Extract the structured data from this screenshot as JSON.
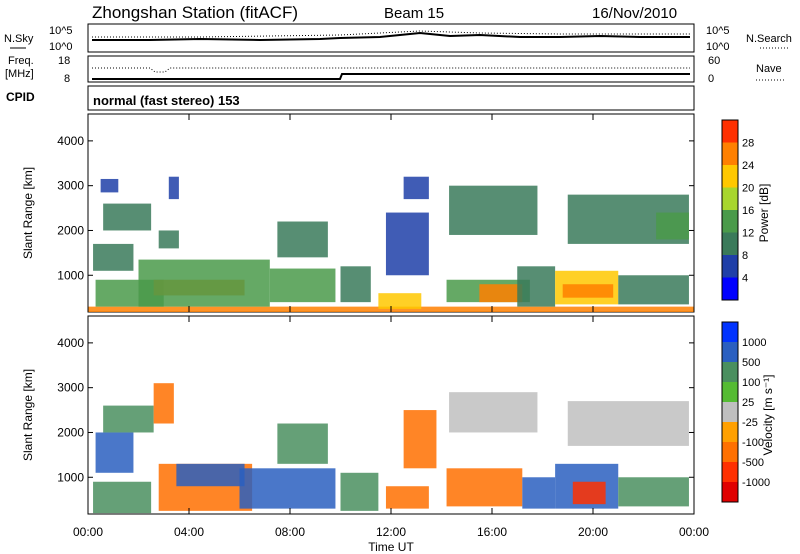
{
  "header": {
    "station": "Zhongshan Station (fitACF)",
    "beam": "Beam 15",
    "date": "16/Nov/2010"
  },
  "noise_panel": {
    "left_label": "N.Sky",
    "right_label": "N.Search",
    "left_ticks": [
      "10^5",
      "10^0"
    ],
    "right_ticks": [
      "10^5",
      "10^0"
    ]
  },
  "freq_panel": {
    "label_line1": "Freq.",
    "label_line2": "[MHz]",
    "left_ticks": [
      "18",
      "8"
    ],
    "right_ticks": [
      "60",
      "0"
    ],
    "right_label": "Nave"
  },
  "cpid_panel": {
    "label": "CPID",
    "text": "normal (fast stereo) 153"
  },
  "colors": {
    "power_scale": [
      "#0000ff",
      "#1f3fa8",
      "#3a7a5a",
      "#4a9a4a",
      "#a8d62e",
      "#ffc800",
      "#ff8000",
      "#ff3000",
      "#e00000"
    ],
    "velocity_scale": [
      "#0033ff",
      "#2a5fc0",
      "#4a8f5f",
      "#55bb33",
      "#bfbfbf",
      "#ffa000",
      "#ff7000",
      "#ff3000",
      "#e00000"
    ],
    "ground_scatter": "#bfbfbf"
  },
  "chart_data": [
    {
      "type": "heatmap",
      "name": "power",
      "x_axis": {
        "label": "Time UT",
        "range": [
          0,
          24
        ],
        "ticks": [
          "00:00",
          "04:00",
          "08:00",
          "12:00",
          "16:00",
          "20:00",
          "00:00"
        ]
      },
      "y_axis": {
        "label": "Slant Range [km]",
        "range": [
          180,
          4600
        ],
        "ticks": [
          1000,
          2000,
          3000,
          4000
        ]
      },
      "colorbar": {
        "label": "Power [dB]",
        "ticks": [
          4,
          8,
          12,
          16,
          20,
          24,
          28
        ],
        "range": [
          0,
          32
        ]
      },
      "regions": [
        {
          "t": [
            0.0,
            24.0
          ],
          "r": [
            180,
            300
          ],
          "v": 27
        },
        {
          "t": [
            0.3,
            3.0
          ],
          "r": [
            300,
            900
          ],
          "v": 12
        },
        {
          "t": [
            0.2,
            1.8
          ],
          "r": [
            1100,
            1700
          ],
          "v": 8
        },
        {
          "t": [
            0.6,
            2.5
          ],
          "r": [
            2000,
            2600
          ],
          "v": 10
        },
        {
          "t": [
            0.5,
            1.2
          ],
          "r": [
            2850,
            3150
          ],
          "v": 6
        },
        {
          "t": [
            2.6,
            6.2
          ],
          "r": [
            550,
            900
          ],
          "v": 26
        },
        {
          "t": [
            2.0,
            7.2
          ],
          "r": [
            300,
            1350
          ],
          "v": 14
        },
        {
          "t": [
            2.8,
            3.6
          ],
          "r": [
            1600,
            2000
          ],
          "v": 11
        },
        {
          "t": [
            3.2,
            3.6
          ],
          "r": [
            2700,
            3200
          ],
          "v": 7
        },
        {
          "t": [
            7.2,
            9.8
          ],
          "r": [
            400,
            1150
          ],
          "v": 12
        },
        {
          "t": [
            7.5,
            9.5
          ],
          "r": [
            1400,
            2200
          ],
          "v": 8
        },
        {
          "t": [
            10.0,
            11.2
          ],
          "r": [
            400,
            1200
          ],
          "v": 9
        },
        {
          "t": [
            11.5,
            13.2
          ],
          "r": [
            250,
            600
          ],
          "v": 22
        },
        {
          "t": [
            11.8,
            13.5
          ],
          "r": [
            1000,
            2400
          ],
          "v": 7
        },
        {
          "t": [
            12.5,
            13.5
          ],
          "r": [
            2700,
            3200
          ],
          "v": 6
        },
        {
          "t": [
            14.3,
            17.8
          ],
          "r": [
            1900,
            3000
          ],
          "v": 8
        },
        {
          "t": [
            14.2,
            17.5
          ],
          "r": [
            400,
            900
          ],
          "v": 14
        },
        {
          "t": [
            15.5,
            17.2
          ],
          "r": [
            400,
            800
          ],
          "v": 24
        },
        {
          "t": [
            17.0,
            18.5
          ],
          "r": [
            300,
            1200
          ],
          "v": 10
        },
        {
          "t": [
            18.5,
            21.0
          ],
          "r": [
            350,
            1100
          ],
          "v": 20
        },
        {
          "t": [
            18.8,
            20.8
          ],
          "r": [
            500,
            800
          ],
          "v": 27
        },
        {
          "t": [
            19.0,
            23.8
          ],
          "r": [
            1700,
            2800
          ],
          "v": 8
        },
        {
          "t": [
            21.0,
            23.8
          ],
          "r": [
            350,
            1000
          ],
          "v": 10
        },
        {
          "t": [
            22.5,
            23.8
          ],
          "r": [
            1800,
            2400
          ],
          "v": 12
        }
      ]
    },
    {
      "type": "heatmap",
      "name": "velocity",
      "x_axis": {
        "label": "Time UT",
        "range": [
          0,
          24
        ],
        "ticks": [
          "00:00",
          "04:00",
          "08:00",
          "12:00",
          "16:00",
          "20:00",
          "00:00"
        ]
      },
      "y_axis": {
        "label": "Slant Range [km]",
        "range": [
          180,
          4600
        ],
        "ticks": [
          1000,
          2000,
          3000,
          4000
        ]
      },
      "colorbar": {
        "label": "Velocity [m s⁻¹]",
        "ticks": [
          1000,
          500,
          100,
          25,
          -25,
          -100,
          -500,
          -1000
        ]
      },
      "regions": [
        {
          "t": [
            0.2,
            2.5
          ],
          "r": [
            200,
            900
          ],
          "v": 100
        },
        {
          "t": [
            0.3,
            1.8
          ],
          "r": [
            1100,
            2000
          ],
          "v": 500
        },
        {
          "t": [
            0.6,
            2.6
          ],
          "r": [
            2000,
            2600
          ],
          "v": 100
        },
        {
          "t": [
            2.6,
            3.4
          ],
          "r": [
            2200,
            3100
          ],
          "v": -300
        },
        {
          "t": [
            2.8,
            6.5
          ],
          "r": [
            250,
            1300
          ],
          "v": -200
        },
        {
          "t": [
            3.5,
            6.2
          ],
          "r": [
            800,
            1300
          ],
          "v": 300
        },
        {
          "t": [
            6.0,
            9.8
          ],
          "r": [
            300,
            1200
          ],
          "v": 300
        },
        {
          "t": [
            7.5,
            9.5
          ],
          "r": [
            1300,
            2200
          ],
          "v": 100
        },
        {
          "t": [
            10.0,
            11.5
          ],
          "r": [
            250,
            1100
          ],
          "v": 200
        },
        {
          "t": [
            11.8,
            13.5
          ],
          "r": [
            300,
            800
          ],
          "v": -200
        },
        {
          "t": [
            12.5,
            13.8
          ],
          "r": [
            1200,
            2500
          ],
          "v": -150
        },
        {
          "t": [
            14.3,
            17.8
          ],
          "r": [
            2000,
            2900
          ],
          "v": 0
        },
        {
          "t": [
            14.2,
            17.2
          ],
          "r": [
            350,
            1200
          ],
          "v": -250
        },
        {
          "t": [
            17.2,
            18.5
          ],
          "r": [
            300,
            1000
          ],
          "v": 300
        },
        {
          "t": [
            18.5,
            21.0
          ],
          "r": [
            300,
            1300
          ],
          "v": 350
        },
        {
          "t": [
            19.2,
            20.5
          ],
          "r": [
            400,
            900
          ],
          "v": -600
        },
        {
          "t": [
            19.0,
            23.8
          ],
          "r": [
            1700,
            2700
          ],
          "v": 0
        },
        {
          "t": [
            21.0,
            23.8
          ],
          "r": [
            350,
            1000
          ],
          "v": 200
        }
      ]
    }
  ]
}
